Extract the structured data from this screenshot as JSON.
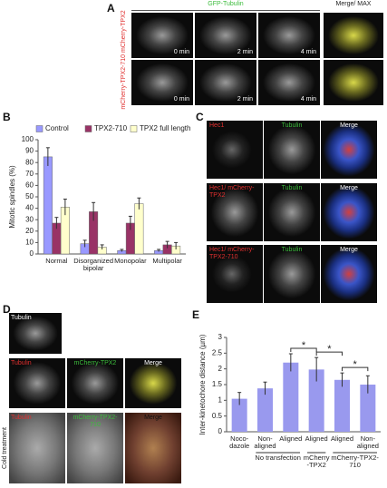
{
  "panel_labels": [
    "A",
    "B",
    "C",
    "D",
    "E"
  ],
  "panel_a": {
    "header": "GFP-Tubulin",
    "merge_header": "Merge/ MAX",
    "row_label": "mCherry-TPX2-710 mCherry-TPX2",
    "times": [
      "0 min",
      "2 min",
      "4 min"
    ]
  },
  "panel_c": {
    "rows": [
      [
        "Hec1",
        "Tubulin",
        "Merge"
      ],
      [
        "Hec1/ mCherry-TPX2",
        "Tubulin",
        "Merge"
      ],
      [
        "Hec1/ mCherry-TPX2-710",
        "Tubulin",
        "Merge"
      ]
    ]
  },
  "panel_d": {
    "side_label": "Cold treatment",
    "rows": [
      [
        "Tubulin"
      ],
      [
        "Tubulin",
        "mCherry-TPX2",
        "Merge"
      ],
      [
        "Tubulin",
        "mCherry-TPX2-710",
        "Merge"
      ]
    ]
  },
  "chart_data": [
    {
      "type": "bar",
      "ylabel": "Mitotic spindles (%)",
      "categories": [
        "Normal",
        "Disorganized bipolar",
        "Monopolar",
        "Multipolar"
      ],
      "series": [
        {
          "name": "Control",
          "color": "#9999ff",
          "values": [
            85,
            9,
            3,
            3
          ],
          "errors": [
            8,
            3,
            1,
            1
          ]
        },
        {
          "name": "TPX2-710",
          "color": "#993366",
          "values": [
            27,
            37,
            27,
            8
          ],
          "errors": [
            5,
            8,
            6,
            3
          ]
        },
        {
          "name": "TPX2 full length",
          "color": "#ffffcc",
          "values": [
            41,
            6,
            44,
            7
          ],
          "errors": [
            7,
            2,
            5,
            3
          ]
        }
      ],
      "ylim": [
        0,
        100
      ],
      "yticks": [
        0,
        10,
        20,
        30,
        40,
        50,
        60,
        70,
        80,
        90,
        100
      ],
      "legend": "top"
    },
    {
      "type": "bar",
      "ylabel": "Inter-kinetochore distance (µm)",
      "categories": [
        "Noco-dazole",
        "Non-aligned",
        "Aligned",
        "Aligned",
        "Aligned",
        "Non-aligned"
      ],
      "values": [
        1.05,
        1.38,
        2.2,
        1.98,
        1.65,
        1.5
      ],
      "errors": [
        0.2,
        0.2,
        0.28,
        0.38,
        0.22,
        0.28
      ],
      "color": "#9999ee",
      "ylim": [
        0,
        3
      ],
      "yticks": [
        0,
        0.5,
        1,
        1.5,
        2,
        2.5,
        3
      ],
      "group_labels": [
        "No transfection",
        "mCherry -TPX2",
        "mCherry-TPX2-710"
      ],
      "annotations": [
        "*",
        "*",
        "*"
      ]
    }
  ]
}
